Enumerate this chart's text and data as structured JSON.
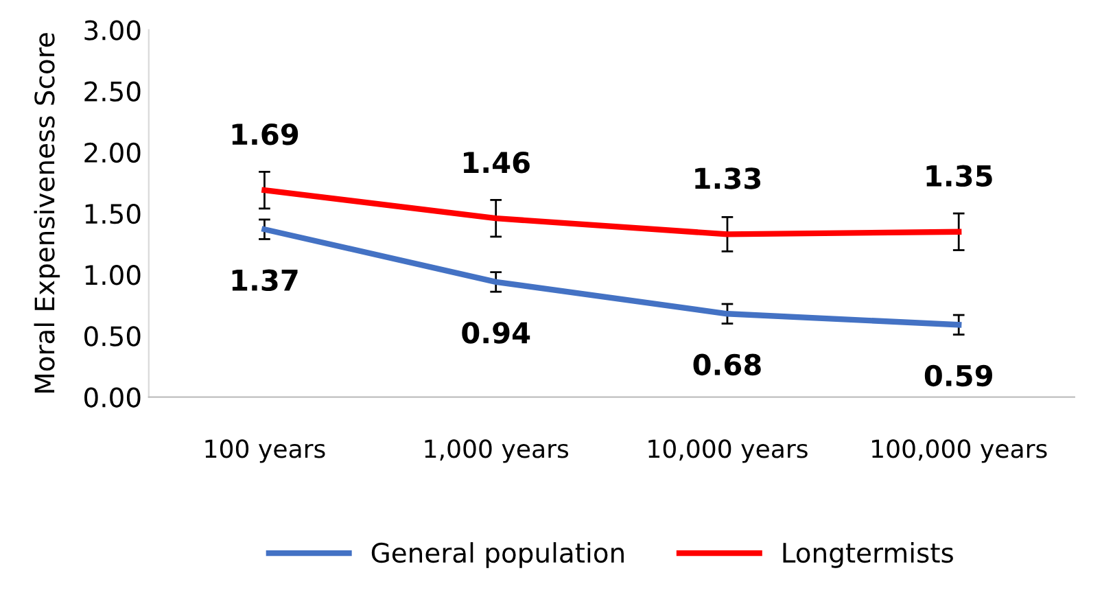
{
  "chart_data": {
    "type": "line",
    "ylabel": "Moral Expensiveness Score",
    "categories": [
      "100 years",
      "1,000 years",
      "10,000 years",
      "100,000 years"
    ],
    "series": [
      {
        "name": "General population",
        "color": "#4472c4",
        "values": [
          1.37,
          0.94,
          0.68,
          0.59
        ],
        "errors": [
          0.08,
          0.08,
          0.08,
          0.08
        ]
      },
      {
        "name": "Longtermists",
        "color": "#ff0000",
        "values": [
          1.69,
          1.46,
          1.33,
          1.35
        ],
        "errors": [
          0.15,
          0.15,
          0.14,
          0.15
        ]
      }
    ],
    "ylim": [
      0,
      3
    ],
    "yticks": [
      {
        "value": 0,
        "label": "0.00"
      },
      {
        "value": 0.5,
        "label": "0.50"
      },
      {
        "value": 1,
        "label": "1.00"
      },
      {
        "value": 1.5,
        "label": "1.50"
      },
      {
        "value": 2,
        "label": "2.00"
      },
      {
        "value": 2.5,
        "label": "2.50"
      },
      {
        "value": 3,
        "label": "3.00"
      }
    ],
    "data_labels": true,
    "legend": "bottom",
    "grid": false,
    "marker": "none",
    "line_style": "solid"
  }
}
